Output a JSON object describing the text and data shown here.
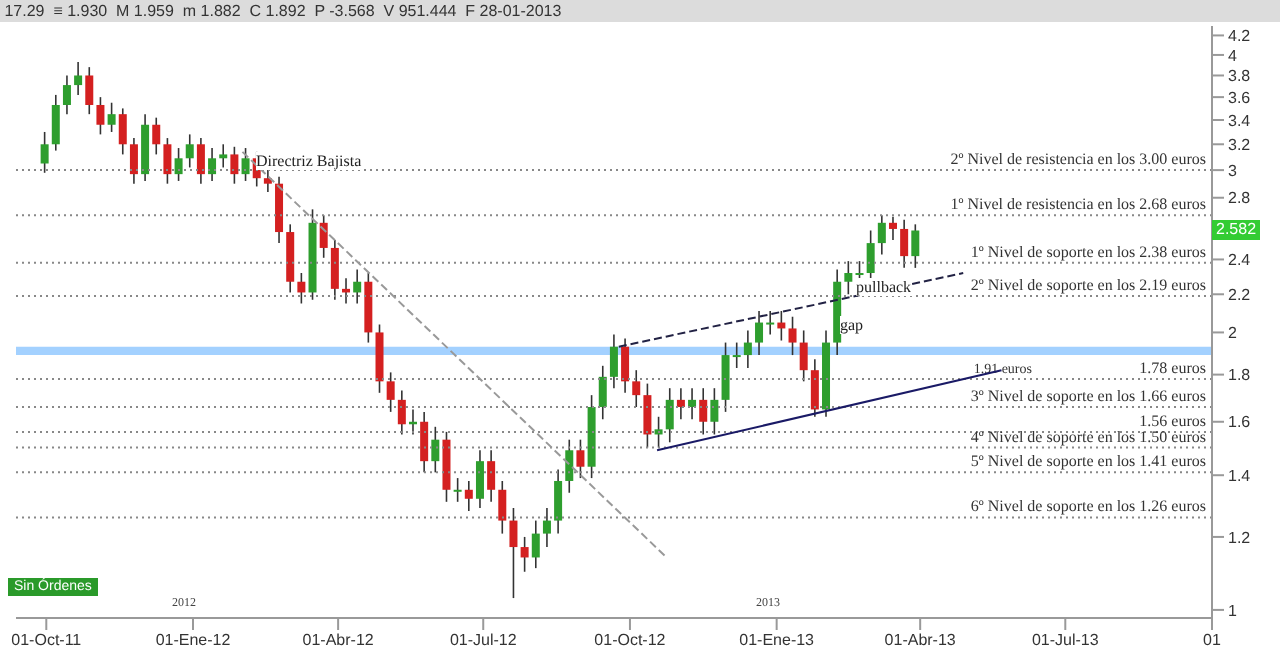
{
  "chart_data": {
    "type": "candlestick",
    "log": "y",
    "grid": false,
    "x": [
      "2011-09-30",
      "2011-10-07",
      "2011-10-14",
      "2011-10-21",
      "2011-10-28",
      "2011-11-04",
      "2011-11-11",
      "2011-11-18",
      "2011-11-25",
      "2011-12-02",
      "2011-12-09",
      "2011-12-16",
      "2011-12-23",
      "2011-12-30",
      "2012-01-06",
      "2012-01-13",
      "2012-01-20",
      "2012-01-27",
      "2012-02-03",
      "2012-02-10",
      "2012-02-17",
      "2012-02-24",
      "2012-03-02",
      "2012-03-09",
      "2012-03-16",
      "2012-03-23",
      "2012-03-30",
      "2012-04-06",
      "2012-04-13",
      "2012-04-20",
      "2012-04-27",
      "2012-05-04",
      "2012-05-11",
      "2012-05-18",
      "2012-05-25",
      "2012-06-01",
      "2012-06-08",
      "2012-06-15",
      "2012-06-22",
      "2012-06-29",
      "2012-07-06",
      "2012-07-13",
      "2012-07-20",
      "2012-07-27",
      "2012-08-03",
      "2012-08-10",
      "2012-08-17",
      "2012-08-24",
      "2012-08-31",
      "2012-09-07",
      "2012-09-14",
      "2012-09-21",
      "2012-09-28",
      "2012-10-05",
      "2012-10-12",
      "2012-10-19",
      "2012-10-26",
      "2012-11-02",
      "2012-11-09",
      "2012-11-16",
      "2012-11-23",
      "2012-11-30",
      "2012-12-07",
      "2012-12-14",
      "2012-12-21",
      "2012-12-28",
      "2013-01-04",
      "2013-01-11",
      "2013-01-18",
      "2013-01-25",
      "2013-02-01",
      "2013-02-08",
      "2013-02-15",
      "2013-02-22",
      "2013-03-01",
      "2013-03-08",
      "2013-03-15",
      "2013-03-22",
      "2013-03-29"
    ],
    "ohlc": [
      [
        3.05,
        3.3,
        2.98,
        3.2
      ],
      [
        3.2,
        3.62,
        3.15,
        3.53
      ],
      [
        3.53,
        3.8,
        3.45,
        3.71
      ],
      [
        3.71,
        3.93,
        3.62,
        3.8
      ],
      [
        3.8,
        3.88,
        3.45,
        3.53
      ],
      [
        3.53,
        3.6,
        3.28,
        3.36
      ],
      [
        3.36,
        3.55,
        3.3,
        3.45
      ],
      [
        3.45,
        3.5,
        3.12,
        3.2
      ],
      [
        3.2,
        3.25,
        2.9,
        2.97
      ],
      [
        2.97,
        3.45,
        2.92,
        3.36
      ],
      [
        3.36,
        3.42,
        3.12,
        3.2
      ],
      [
        3.2,
        3.25,
        2.9,
        2.97
      ],
      [
        2.97,
        3.17,
        2.92,
        3.09
      ],
      [
        3.09,
        3.28,
        3.02,
        3.2
      ],
      [
        3.2,
        3.25,
        2.9,
        2.97
      ],
      [
        2.97,
        3.17,
        2.92,
        3.09
      ],
      [
        3.09,
        3.2,
        3.02,
        3.12
      ],
      [
        3.12,
        3.18,
        2.9,
        2.97
      ],
      [
        2.97,
        3.17,
        2.92,
        3.09
      ],
      [
        3.09,
        3.14,
        2.88,
        2.94
      ],
      [
        2.94,
        3.02,
        2.84,
        2.9
      ],
      [
        2.9,
        2.95,
        2.5,
        2.57
      ],
      [
        2.57,
        2.62,
        2.21,
        2.27
      ],
      [
        2.27,
        2.32,
        2.15,
        2.21
      ],
      [
        2.21,
        2.72,
        2.17,
        2.63
      ],
      [
        2.63,
        2.68,
        2.41,
        2.47
      ],
      [
        2.47,
        2.52,
        2.17,
        2.23
      ],
      [
        2.23,
        2.29,
        2.15,
        2.21
      ],
      [
        2.21,
        2.34,
        2.15,
        2.27
      ],
      [
        2.27,
        2.32,
        1.95,
        2.0
      ],
      [
        2.0,
        2.04,
        1.72,
        1.77
      ],
      [
        1.77,
        1.81,
        1.64,
        1.69
      ],
      [
        1.69,
        1.73,
        1.55,
        1.59
      ],
      [
        1.59,
        1.65,
        1.55,
        1.6
      ],
      [
        1.6,
        1.64,
        1.41,
        1.45
      ],
      [
        1.45,
        1.58,
        1.41,
        1.53
      ],
      [
        1.53,
        1.56,
        1.31,
        1.35
      ],
      [
        1.35,
        1.39,
        1.31,
        1.35
      ],
      [
        1.35,
        1.38,
        1.28,
        1.32
      ],
      [
        1.32,
        1.49,
        1.29,
        1.45
      ],
      [
        1.45,
        1.49,
        1.31,
        1.35
      ],
      [
        1.35,
        1.38,
        1.21,
        1.25
      ],
      [
        1.25,
        1.29,
        1.03,
        1.17
      ],
      [
        1.17,
        1.2,
        1.1,
        1.14
      ],
      [
        1.14,
        1.25,
        1.11,
        1.21
      ],
      [
        1.21,
        1.29,
        1.17,
        1.25
      ],
      [
        1.25,
        1.42,
        1.21,
        1.38
      ],
      [
        1.38,
        1.53,
        1.34,
        1.49
      ],
      [
        1.49,
        1.53,
        1.39,
        1.43
      ],
      [
        1.43,
        1.71,
        1.39,
        1.66
      ],
      [
        1.66,
        1.84,
        1.61,
        1.79
      ],
      [
        1.79,
        1.99,
        1.74,
        1.93
      ],
      [
        1.93,
        1.97,
        1.72,
        1.77
      ],
      [
        1.77,
        1.82,
        1.66,
        1.71
      ],
      [
        1.71,
        1.76,
        1.5,
        1.55
      ],
      [
        1.55,
        1.62,
        1.5,
        1.57
      ],
      [
        1.57,
        1.74,
        1.52,
        1.69
      ],
      [
        1.69,
        1.74,
        1.61,
        1.66
      ],
      [
        1.66,
        1.74,
        1.61,
        1.69
      ],
      [
        1.69,
        1.74,
        1.55,
        1.6
      ],
      [
        1.6,
        1.74,
        1.55,
        1.69
      ],
      [
        1.69,
        1.95,
        1.64,
        1.89
      ],
      [
        1.89,
        1.95,
        1.83,
        1.89
      ],
      [
        1.89,
        2.01,
        1.83,
        1.95
      ],
      [
        1.95,
        2.11,
        1.89,
        2.05
      ],
      [
        2.05,
        2.11,
        1.99,
        2.05
      ],
      [
        2.05,
        2.11,
        1.96,
        2.02
      ],
      [
        2.02,
        2.08,
        1.89,
        1.95
      ],
      [
        1.95,
        2.01,
        1.77,
        1.82
      ],
      [
        1.82,
        1.87,
        1.62,
        1.65
      ],
      [
        1.65,
        2.01,
        1.62,
        1.95
      ],
      [
        1.95,
        2.34,
        1.89,
        2.27
      ],
      [
        2.27,
        2.39,
        2.2,
        2.32
      ],
      [
        2.32,
        2.39,
        2.25,
        2.32
      ],
      [
        2.32,
        2.58,
        2.25,
        2.5
      ],
      [
        2.5,
        2.68,
        2.43,
        2.63
      ],
      [
        2.63,
        2.67,
        2.52,
        2.59
      ],
      [
        2.59,
        2.65,
        2.35,
        2.42
      ],
      [
        2.42,
        2.62,
        2.35,
        2.58
      ]
    ],
    "series": [
      {
        "type": "line",
        "x": [
          "2012-02-01",
          "2012-10-24"
        ],
        "values": [
          3.14,
          1.14
        ],
        "color": "#999999",
        "line_style": "dashed"
      },
      {
        "type": "line",
        "x": [
          "2012-09-24",
          "2013-04-28"
        ],
        "values": [
          1.93,
          2.32
        ],
        "color": "#222244",
        "line_style": "dashed"
      },
      {
        "type": "line",
        "x": [
          "2012-10-18",
          "2013-05-22"
        ],
        "values": [
          1.49,
          1.82
        ],
        "color": "#1a1a66",
        "line_style": "solid"
      }
    ],
    "xlim": [
      "2011-09-12",
      "2013-10-01"
    ],
    "xticks": [
      {
        "value": "2011-10-01",
        "label": "01-Oct-11"
      },
      {
        "value": "2012-01-01",
        "label": "01-Ene-12"
      },
      {
        "value": "2012-04-01",
        "label": "01-Abr-12"
      },
      {
        "value": "2012-07-01",
        "label": "01-Jul-12"
      },
      {
        "value": "2012-10-01",
        "label": "01-Oct-12"
      },
      {
        "value": "2013-01-01",
        "label": "01-Ene-13"
      },
      {
        "value": "2013-04-01",
        "label": "01-Abr-13"
      },
      {
        "value": "2013-07-01",
        "label": "01-Jul-13"
      },
      {
        "value": "2013-10-01",
        "label": "01"
      }
    ],
    "ylim": [
      0.98,
      4.3
    ],
    "yticks": [
      1,
      1.2,
      1.4,
      1.6,
      1.8,
      2,
      2.2,
      2.4,
      2.8,
      3,
      3.2,
      3.4,
      3.6,
      3.8,
      4,
      4.2
    ],
    "ref_lines": [
      {
        "axis": "y",
        "value": 3.0,
        "label": "2º Nivel de resistencia en los 3.00 euros",
        "color": "#888888",
        "line_style": "dotted"
      },
      {
        "axis": "y",
        "value": 2.68,
        "label": "1º Nivel de resistencia en los 2.68 euros",
        "color": "#888888",
        "line_style": "dotted"
      },
      {
        "axis": "y",
        "value": 2.38,
        "label": "1º Nivel de soporte en los 2.38 euros",
        "color": "#888888",
        "line_style": "dotted"
      },
      {
        "axis": "y",
        "value": 2.19,
        "label": "2º Nivel de soporte en los 2.19 euros",
        "color": "#888888",
        "line_style": "dotted"
      },
      {
        "axis": "y",
        "value": 1.78,
        "label": "1.78 euros",
        "color": "#888888",
        "line_style": "dotted"
      },
      {
        "axis": "y",
        "value": 1.66,
        "label": "3º Nivel de soporte en los 1.66 euros",
        "color": "#888888",
        "line_style": "dotted"
      },
      {
        "axis": "y",
        "value": 1.56,
        "label": "1.56 euros",
        "color": "#888888",
        "line_style": "dotted"
      },
      {
        "axis": "y",
        "value": 1.5,
        "label": "4º Nivel de soporte en los 1.50 euros",
        "color": "#888888",
        "line_style": "dotted"
      },
      {
        "axis": "y",
        "value": 1.41,
        "label": "5º Nivel de soporte en los 1.41 euros",
        "color": "#888888",
        "line_style": "dotted"
      },
      {
        "axis": "y",
        "value": 1.26,
        "label": "6º Nivel de soporte en los 1.26 euros",
        "color": "#888888",
        "line_style": "dotted"
      }
    ],
    "bands": [
      {
        "axis": "y",
        "from": 1.89,
        "to": 1.93,
        "label": "1.91 euros",
        "color": "#99ccff"
      }
    ],
    "annotations": [
      "17.29  ≡ 1.930  M 1.959  m 1.882  C 1.892  P -3.568  V 951.444  F 28-01-2013",
      "Sin Órdenes",
      "2.582",
      "2012",
      "2013",
      "pullback",
      "gap",
      "Directriz Bajista"
    ]
  }
}
